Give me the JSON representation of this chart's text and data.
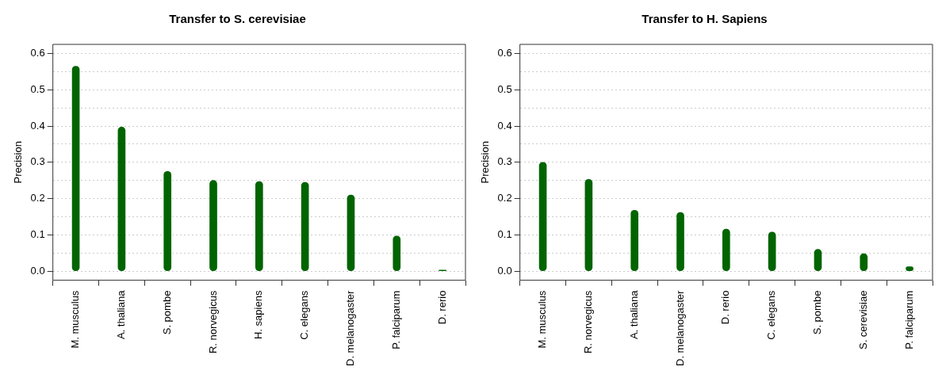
{
  "chart_data": [
    {
      "type": "bar",
      "title": "Transfer to S. cerevisiae",
      "ylabel": "Precision",
      "categories": [
        "M. musculus",
        "A. thaliana",
        "S. pombe",
        "R. norvegicus",
        "H. sapiens",
        "C. elegans",
        "D. melanogaster",
        "P. falciparum",
        "D. rerio"
      ],
      "values": [
        0.565,
        0.397,
        0.275,
        0.25,
        0.247,
        0.245,
        0.21,
        0.097,
        0.003
      ],
      "color": "#006400",
      "ylim": [
        -0.025,
        0.625
      ],
      "yticks": [
        {
          "value": 0,
          "label": "0.0"
        },
        {
          "value": 0.05,
          "label": null
        },
        {
          "value": 0.1,
          "label": "0.1"
        },
        {
          "value": 0.15,
          "label": null
        },
        {
          "value": 0.2,
          "label": "0.2"
        },
        {
          "value": 0.25,
          "label": null
        },
        {
          "value": 0.3,
          "label": "0.3"
        },
        {
          "value": 0.35,
          "label": null
        },
        {
          "value": 0.4,
          "label": "0.4"
        },
        {
          "value": 0.45,
          "label": null
        },
        {
          "value": 0.5,
          "label": "0.5"
        },
        {
          "value": 0.55,
          "label": null
        },
        {
          "value": 0.6,
          "label": "0.6"
        }
      ],
      "grid": "y"
    },
    {
      "type": "bar",
      "title": "Transfer to H. Sapiens",
      "ylabel": "Precision",
      "categories": [
        "M. musculus",
        "R. norvegicus",
        "A. thaliana",
        "D. melanogaster",
        "D. rerio",
        "C. elegans",
        "S. pombe",
        "S. cerevisiae",
        "P. falciparum"
      ],
      "values": [
        0.3,
        0.253,
        0.168,
        0.162,
        0.116,
        0.108,
        0.06,
        0.048,
        0.012
      ],
      "color": "#006400",
      "ylim": [
        -0.025,
        0.625
      ],
      "yticks": [
        {
          "value": 0,
          "label": "0.0"
        },
        {
          "value": 0.05,
          "label": null
        },
        {
          "value": 0.1,
          "label": "0.1"
        },
        {
          "value": 0.15,
          "label": null
        },
        {
          "value": 0.2,
          "label": "0.2"
        },
        {
          "value": 0.25,
          "label": null
        },
        {
          "value": 0.3,
          "label": "0.3"
        },
        {
          "value": 0.35,
          "label": null
        },
        {
          "value": 0.4,
          "label": "0.4"
        },
        {
          "value": 0.45,
          "label": null
        },
        {
          "value": 0.5,
          "label": "0.5"
        },
        {
          "value": 0.55,
          "label": null
        },
        {
          "value": 0.6,
          "label": "0.6"
        }
      ],
      "grid": "y"
    }
  ]
}
